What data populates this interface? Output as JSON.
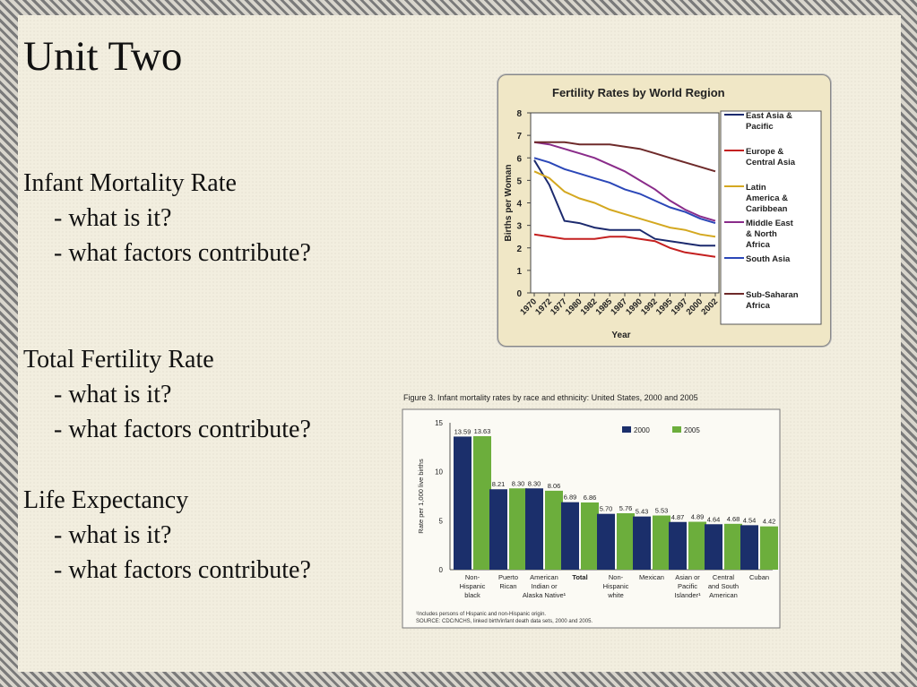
{
  "slide": {
    "title": "Unit Two",
    "sections": [
      {
        "heading": "Infant Mortality Rate",
        "bullets": [
          "- what is it?",
          "- what factors contribute?"
        ]
      },
      {
        "heading": "Total Fertility Rate",
        "bullets": [
          "- what is it?",
          "- what factors contribute?"
        ]
      },
      {
        "heading": "Life Expectancy",
        "bullets": [
          "- what is it?",
          "- what factors contribute?"
        ]
      }
    ]
  },
  "fig2": {
    "footnote": "¹Includes persons of Hispanic and non-Hispanic origin.",
    "source": "SOURCE:  CDC/NCHS, linked birth/infant death data sets, 2000 and 2005."
  },
  "chart_data": [
    {
      "type": "line",
      "title": "Fertility Rates by World Region",
      "xlabel": "Year",
      "ylabel": "Births per Woman",
      "x_ticks": [
        "1970",
        "1972",
        "1977",
        "1980",
        "1982",
        "1985",
        "1987",
        "1990",
        "1992",
        "1995",
        "1997",
        "2000",
        "2002"
      ],
      "ylim": [
        0,
        8
      ],
      "y_ticks": [
        0,
        1,
        2,
        3,
        4,
        5,
        6,
        7,
        8
      ],
      "legend_position": "right",
      "series": [
        {
          "name": "East Asia & Pacific",
          "color": "#1c2a6e",
          "values": [
            5.9,
            4.8,
            3.2,
            3.1,
            2.9,
            2.8,
            2.8,
            2.8,
            2.4,
            2.3,
            2.2,
            2.1,
            2.1
          ]
        },
        {
          "name": "Europe & Central Asia",
          "color": "#c42020",
          "values": [
            2.6,
            2.5,
            2.4,
            2.4,
            2.4,
            2.5,
            2.5,
            2.4,
            2.3,
            2.0,
            1.8,
            1.7,
            1.6
          ]
        },
        {
          "name": "Latin America & Caribbean",
          "color": "#d4a820",
          "values": [
            5.4,
            5.1,
            4.5,
            4.2,
            4.0,
            3.7,
            3.5,
            3.3,
            3.1,
            2.9,
            2.8,
            2.6,
            2.5
          ]
        },
        {
          "name": "Middle East & North Africa",
          "color": "#8a2c8a",
          "values": [
            6.7,
            6.6,
            6.4,
            6.2,
            6.0,
            5.7,
            5.4,
            5.0,
            4.6,
            4.1,
            3.7,
            3.4,
            3.2
          ]
        },
        {
          "name": "South Asia",
          "color": "#2b47b8",
          "values": [
            6.0,
            5.8,
            5.5,
            5.3,
            5.1,
            4.9,
            4.6,
            4.4,
            4.1,
            3.8,
            3.6,
            3.3,
            3.1
          ]
        },
        {
          "name": "Sub-Saharan Africa",
          "color": "#6e2a2a",
          "values": [
            6.7,
            6.7,
            6.7,
            6.6,
            6.6,
            6.6,
            6.5,
            6.4,
            6.2,
            6.0,
            5.8,
            5.6,
            5.4
          ]
        }
      ]
    },
    {
      "type": "bar",
      "title": "Figure 3.  Infant mortality rates by race and ethnicity: United States, 2000 and 2005",
      "ylabel": "Rate per 1,000 live births",
      "ylim": [
        0,
        15
      ],
      "y_ticks": [
        0,
        5,
        10,
        15
      ],
      "legend_position": "top-right",
      "categories": [
        [
          "Non-",
          "Hispanic",
          "black"
        ],
        [
          "Puerto",
          "Rican"
        ],
        [
          "American",
          "Indian or",
          "Alaska Native¹"
        ],
        [
          "Total"
        ],
        [
          "Non-",
          "Hispanic",
          "white"
        ],
        [
          "Mexican"
        ],
        [
          "Asian or",
          "Pacific",
          "Islander¹"
        ],
        [
          "Central",
          "and South",
          "American"
        ],
        [
          "Cuban"
        ]
      ],
      "series": [
        {
          "name": "2000",
          "color": "#1b2f6b",
          "values": [
            13.59,
            8.21,
            8.3,
            6.89,
            5.7,
            5.43,
            4.87,
            4.64,
            4.54
          ]
        },
        {
          "name": "2005",
          "color": "#6cae3c",
          "values": [
            13.63,
            8.3,
            8.06,
            6.86,
            5.76,
            5.53,
            4.89,
            4.68,
            4.42
          ]
        }
      ],
      "value_labels": [
        [
          "13.59",
          "8.21",
          "8.30",
          "6.89",
          "5.70",
          "5.43",
          "4.87",
          "4.64",
          "4.54"
        ],
        [
          "13.63",
          "8.30",
          "8.06",
          "6.86",
          "5.76",
          "5.53",
          "4.89",
          "4.68",
          "4.42"
        ]
      ]
    }
  ]
}
